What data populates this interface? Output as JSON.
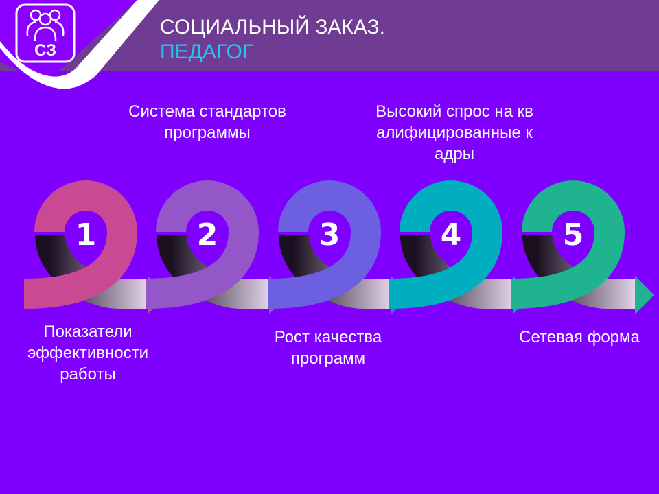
{
  "header": {
    "title": "СОЦИАЛЬНЫЙ ЗАКАЗ.",
    "subtitle": "ПЕДАГОГ",
    "logo_text": "СЗ",
    "logo_icon": "people-group-icon"
  },
  "steps": [
    {
      "number": "1",
      "label": "Показатели эффективности работы",
      "color": "#c94a92"
    },
    {
      "number": "2",
      "label": "Система стандартов программы",
      "color": "#9457c8"
    },
    {
      "number": "3",
      "label": "Рост качества программ",
      "color": "#6c5fe0"
    },
    {
      "number": "4",
      "label": "Высокий спрос на квалифицированные кадры",
      "color": "#00aec0"
    },
    {
      "number": "5",
      "label": "Сетевая форма",
      "color": "#1fb390"
    }
  ]
}
